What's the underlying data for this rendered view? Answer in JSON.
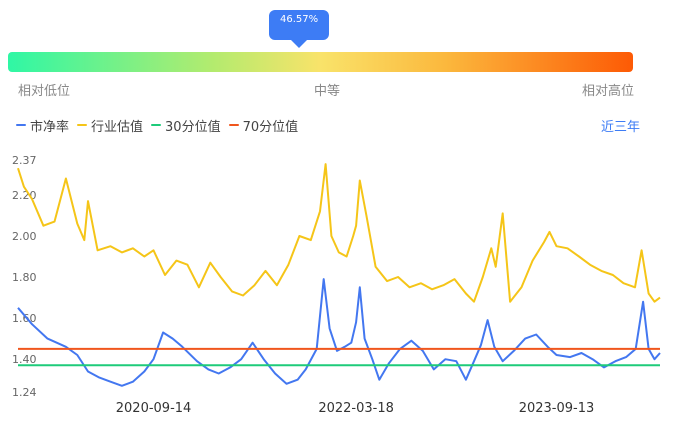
{
  "gauge": {
    "percentile_label": "46.57%",
    "percentile": 0.4657,
    "labels": {
      "low": "相对低位",
      "mid": "中等",
      "high": "相对高位"
    },
    "colors": [
      "#2ff7a5",
      "#b4eb6e",
      "#f9e36a",
      "#fbb83d",
      "#fd5a05"
    ]
  },
  "range_selector": "近三年",
  "chart_data": {
    "type": "line",
    "x_ticks": [
      "2020-09-14",
      "2022-03-18",
      "2023-09-13"
    ],
    "x_range": [
      "2019-09-12",
      "2024-06-20"
    ],
    "y_ticks": [
      1.24,
      1.4,
      1.6,
      1.8,
      2.0,
      2.2,
      2.37
    ],
    "ylim": [
      1.24,
      2.37
    ],
    "series": [
      {
        "name": "市净率",
        "color": "#4377f0",
        "points": [
          [
            "2019-09-12",
            1.65
          ],
          [
            "2019-10-20",
            1.57
          ],
          [
            "2019-12-01",
            1.5
          ],
          [
            "2020-01-20",
            1.46
          ],
          [
            "2020-02-20",
            1.42
          ],
          [
            "2020-03-20",
            1.34
          ],
          [
            "2020-04-20",
            1.31
          ],
          [
            "2020-05-20",
            1.29
          ],
          [
            "2020-06-20",
            1.27
          ],
          [
            "2020-07-20",
            1.29
          ],
          [
            "2020-08-20",
            1.34
          ],
          [
            "2020-09-14",
            1.4
          ],
          [
            "2020-10-10",
            1.53
          ],
          [
            "2020-11-05",
            1.5
          ],
          [
            "2020-12-01",
            1.46
          ],
          [
            "2021-01-10",
            1.39
          ],
          [
            "2021-02-10",
            1.35
          ],
          [
            "2021-03-10",
            1.33
          ],
          [
            "2021-04-10",
            1.36
          ],
          [
            "2021-05-10",
            1.4
          ],
          [
            "2021-06-10",
            1.48
          ],
          [
            "2021-07-10",
            1.4
          ],
          [
            "2021-08-10",
            1.33
          ],
          [
            "2021-09-10",
            1.28
          ],
          [
            "2021-10-10",
            1.3
          ],
          [
            "2021-11-01",
            1.35
          ],
          [
            "2021-12-01",
            1.45
          ],
          [
            "2021-12-20",
            1.79
          ],
          [
            "2022-01-05",
            1.55
          ],
          [
            "2022-01-25",
            1.44
          ],
          [
            "2022-02-15",
            1.46
          ],
          [
            "2022-03-05",
            1.48
          ],
          [
            "2022-03-18",
            1.58
          ],
          [
            "2022-03-28",
            1.75
          ],
          [
            "2022-04-10",
            1.5
          ],
          [
            "2022-05-01",
            1.4
          ],
          [
            "2022-05-20",
            1.3
          ],
          [
            "2022-06-15",
            1.38
          ],
          [
            "2022-07-15",
            1.45
          ],
          [
            "2022-08-15",
            1.49
          ],
          [
            "2022-09-15",
            1.44
          ],
          [
            "2022-10-15",
            1.35
          ],
          [
            "2022-11-15",
            1.4
          ],
          [
            "2022-12-15",
            1.39
          ],
          [
            "2023-01-10",
            1.3
          ],
          [
            "2023-02-01",
            1.39
          ],
          [
            "2023-02-20",
            1.47
          ],
          [
            "2023-03-10",
            1.59
          ],
          [
            "2023-03-28",
            1.46
          ],
          [
            "2023-04-20",
            1.39
          ],
          [
            "2023-05-20",
            1.44
          ],
          [
            "2023-06-20",
            1.5
          ],
          [
            "2023-07-20",
            1.52
          ],
          [
            "2023-08-20",
            1.46
          ],
          [
            "2023-09-13",
            1.42
          ],
          [
            "2023-10-20",
            1.41
          ],
          [
            "2023-11-20",
            1.43
          ],
          [
            "2023-12-20",
            1.4
          ],
          [
            "2024-01-20",
            1.36
          ],
          [
            "2024-02-20",
            1.39
          ],
          [
            "2024-03-20",
            1.41
          ],
          [
            "2024-04-15",
            1.45
          ],
          [
            "2024-05-05",
            1.68
          ],
          [
            "2024-05-20",
            1.45
          ],
          [
            "2024-06-05",
            1.4
          ],
          [
            "2024-06-20",
            1.43
          ]
        ]
      },
      {
        "name": "行业估值",
        "color": "#f5c518",
        "points": [
          [
            "2019-09-12",
            2.33
          ],
          [
            "2019-09-28",
            2.24
          ],
          [
            "2019-10-20",
            2.18
          ],
          [
            "2019-11-20",
            2.05
          ],
          [
            "2019-12-20",
            2.07
          ],
          [
            "2020-01-20",
            2.28
          ],
          [
            "2020-02-20",
            2.06
          ],
          [
            "2020-03-10",
            1.98
          ],
          [
            "2020-03-20",
            2.17
          ],
          [
            "2020-04-15",
            1.93
          ],
          [
            "2020-05-20",
            1.95
          ],
          [
            "2020-06-20",
            1.92
          ],
          [
            "2020-07-20",
            1.94
          ],
          [
            "2020-08-20",
            1.9
          ],
          [
            "2020-09-14",
            1.93
          ],
          [
            "2020-10-15",
            1.81
          ],
          [
            "2020-11-15",
            1.88
          ],
          [
            "2020-12-15",
            1.86
          ],
          [
            "2021-01-15",
            1.75
          ],
          [
            "2021-02-15",
            1.87
          ],
          [
            "2021-03-15",
            1.8
          ],
          [
            "2021-04-15",
            1.73
          ],
          [
            "2021-05-15",
            1.71
          ],
          [
            "2021-06-15",
            1.76
          ],
          [
            "2021-07-15",
            1.83
          ],
          [
            "2021-08-15",
            1.76
          ],
          [
            "2021-09-15",
            1.86
          ],
          [
            "2021-10-15",
            2.0
          ],
          [
            "2021-11-15",
            1.98
          ],
          [
            "2021-12-10",
            2.12
          ],
          [
            "2021-12-25",
            2.35
          ],
          [
            "2022-01-10",
            2.0
          ],
          [
            "2022-01-30",
            1.92
          ],
          [
            "2022-02-20",
            1.9
          ],
          [
            "2022-03-10",
            2.0
          ],
          [
            "2022-03-18",
            2.05
          ],
          [
            "2022-03-28",
            2.27
          ],
          [
            "2022-04-15",
            2.1
          ],
          [
            "2022-05-10",
            1.85
          ],
          [
            "2022-06-10",
            1.78
          ],
          [
            "2022-07-10",
            1.8
          ],
          [
            "2022-08-10",
            1.75
          ],
          [
            "2022-09-10",
            1.77
          ],
          [
            "2022-10-10",
            1.74
          ],
          [
            "2022-11-10",
            1.76
          ],
          [
            "2022-12-10",
            1.79
          ],
          [
            "2023-01-10",
            1.72
          ],
          [
            "2023-02-01",
            1.68
          ],
          [
            "2023-02-25",
            1.8
          ],
          [
            "2023-03-20",
            1.94
          ],
          [
            "2023-04-01",
            1.85
          ],
          [
            "2023-04-20",
            2.11
          ],
          [
            "2023-05-10",
            1.68
          ],
          [
            "2023-06-10",
            1.75
          ],
          [
            "2023-07-10",
            1.88
          ],
          [
            "2023-08-10",
            1.97
          ],
          [
            "2023-08-25",
            2.02
          ],
          [
            "2023-09-13",
            1.95
          ],
          [
            "2023-10-13",
            1.94
          ],
          [
            "2023-11-13",
            1.9
          ],
          [
            "2023-12-13",
            1.86
          ],
          [
            "2024-01-13",
            1.83
          ],
          [
            "2024-02-13",
            1.81
          ],
          [
            "2024-03-13",
            1.77
          ],
          [
            "2024-04-13",
            1.75
          ],
          [
            "2024-05-01",
            1.93
          ],
          [
            "2024-05-20",
            1.72
          ],
          [
            "2024-06-05",
            1.68
          ],
          [
            "2024-06-20",
            1.7
          ]
        ]
      },
      {
        "name": "30分位值",
        "color": "#1ecb7a",
        "points": [
          [
            "2019-09-12",
            1.37
          ],
          [
            "2024-06-20",
            1.37
          ]
        ]
      },
      {
        "name": "70分位值",
        "color": "#f0561d",
        "points": [
          [
            "2019-09-12",
            1.45
          ],
          [
            "2024-06-20",
            1.45
          ]
        ]
      }
    ]
  }
}
